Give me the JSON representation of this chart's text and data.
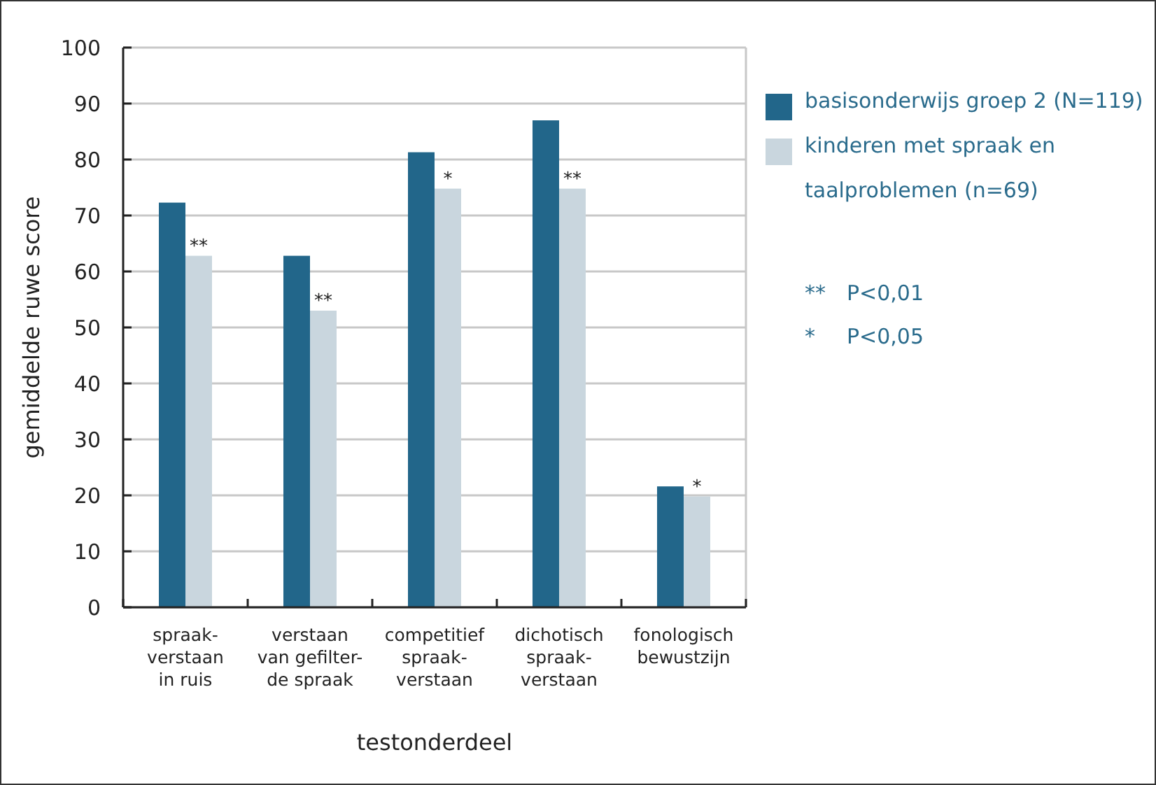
{
  "chart_data": {
    "type": "bar",
    "xlabel": "testonderdeel",
    "ylabel": "gemiddelde ruwe score",
    "categories": [
      "spraak-\nverstaan\nin ruis",
      "verstaan\nvan gefilter-\nde spraak",
      "competitief\nspraak-\nverstaan",
      "dichotisch\nspraak-\nverstaan",
      "fonologisch\nbewustzijn"
    ],
    "series": [
      {
        "name": "basisonderwijs groep 2 (N=119)",
        "color": "#22668a",
        "values": [
          72.3,
          62.8,
          81.3,
          87.0,
          21.6
        ]
      },
      {
        "name": "kinderen met spraak en taalproblemen (n=69)",
        "color": "#c9d6de",
        "values": [
          62.8,
          53.0,
          74.8,
          74.8,
          19.8
        ]
      }
    ],
    "ylim": [
      0,
      100
    ],
    "yticks": [
      0,
      10,
      20,
      30,
      40,
      50,
      60,
      70,
      80,
      90,
      100
    ],
    "grid": "y",
    "legend": "right",
    "annotations": [
      {
        "text": "**",
        "x": "spraak-\nverstaan\nin ruis",
        "y": 62.8
      },
      {
        "text": "**",
        "x": "verstaan\nvan gefilter-\nde spraak",
        "y": 53.0
      },
      {
        "text": "*",
        "x": "competitief\nspraak-\nverstaan",
        "y": 74.8
      },
      {
        "text": "**",
        "x": "dichotisch\nspraak-\nverstaan",
        "y": 74.8
      },
      {
        "text": "*",
        "x": "fonologisch\nbewustzijn",
        "y": 19.8
      },
      "** P<0,01",
      "* P<0,05"
    ]
  }
}
